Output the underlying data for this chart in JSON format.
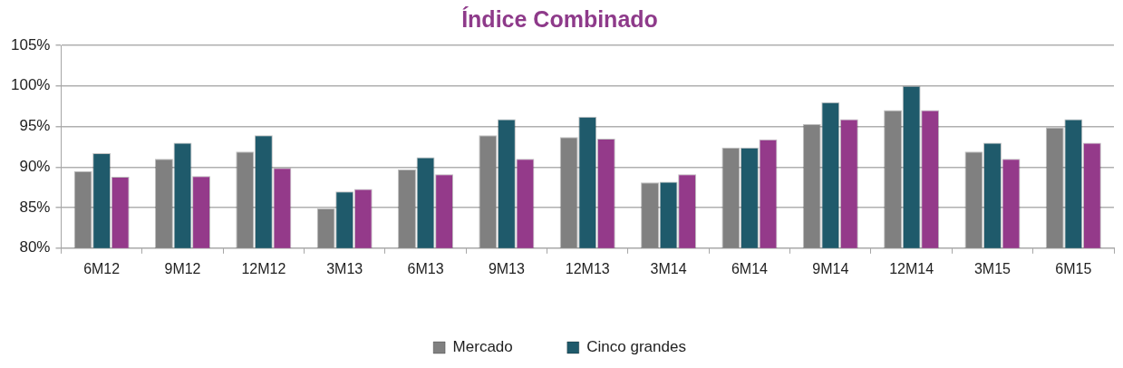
{
  "chart_data": {
    "type": "bar",
    "title": "Índice Combinado",
    "categories": [
      "6M12",
      "9M12",
      "12M12",
      "3M13",
      "6M13",
      "9M13",
      "12M13",
      "3M14",
      "6M14",
      "9M14",
      "12M14",
      "3M15",
      "6M15"
    ],
    "series": [
      {
        "name": "Mercado",
        "color": "#808080",
        "values": [
          89.5,
          91,
          91.9,
          84.9,
          89.7,
          93.9,
          93.7,
          88.1,
          92.4,
          95.3,
          97,
          91.9,
          94.9
        ]
      },
      {
        "name": "Cinco grandes",
        "color": "#1f5a6b",
        "values": [
          91.7,
          93,
          93.9,
          87,
          91.2,
          95.9,
          96.2,
          88.2,
          92.4,
          98,
          100,
          93,
          95.9
        ]
      },
      {
        "color": "#943a8a",
        "values": [
          88.8,
          88.9,
          89.9,
          87.3,
          89.1,
          91,
          93.5,
          89.1,
          93.4,
          95.9,
          97,
          91,
          93
        ]
      }
    ],
    "ylim": [
      80,
      105
    ],
    "yticks": [
      {
        "value": 80,
        "label": "80%"
      },
      {
        "value": 85,
        "label": "85%"
      },
      {
        "value": 90,
        "label": "90%"
      },
      {
        "value": 95,
        "label": "95%"
      },
      {
        "value": 100,
        "label": "100%"
      },
      {
        "value": 105,
        "label": "105%"
      }
    ],
    "grid": "y",
    "legend": "bottom"
  }
}
